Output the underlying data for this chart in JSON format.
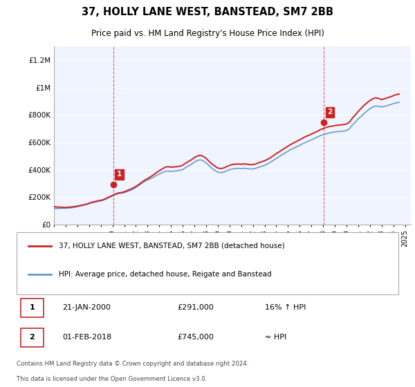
{
  "title": "37, HOLLY LANE WEST, BANSTEAD, SM7 2BB",
  "subtitle": "Price paid vs. HM Land Registry's House Price Index (HPI)",
  "ylabel_ticks": [
    "£0",
    "£200K",
    "£400K",
    "£600K",
    "£800K",
    "£1M",
    "£1.2M"
  ],
  "ytick_values": [
    0,
    200000,
    400000,
    600000,
    800000,
    1000000,
    1200000
  ],
  "ylim": [
    0,
    1300000
  ],
  "xlim_start": 1995.0,
  "xlim_end": 2025.5,
  "bg_color": "#f0f4ff",
  "plot_bg": "#f0f4ff",
  "grid_color": "#ffffff",
  "hpi_color": "#6699cc",
  "price_color": "#cc2222",
  "sale1_date": 2000.06,
  "sale1_price": 291000,
  "sale1_label": "1",
  "sale2_date": 2018.08,
  "sale2_price": 745000,
  "sale2_label": "2",
  "legend_line1": "37, HOLLY LANE WEST, BANSTEAD, SM7 2BB (detached house)",
  "legend_line2": "HPI: Average price, detached house, Reigate and Banstead",
  "table_row1_label": "1",
  "table_row1_date": "21-JAN-2000",
  "table_row1_price": "£291,000",
  "table_row1_hpi": "16% ↑ HPI",
  "table_row2_label": "2",
  "table_row2_date": "01-FEB-2018",
  "table_row2_price": "£745,000",
  "table_row2_hpi": "≈ HPI",
  "footer1": "Contains HM Land Registry data © Crown copyright and database right 2024.",
  "footer2": "This data is licensed under the Open Government Licence v3.0.",
  "hpi_data_x": [
    1995.0,
    1995.25,
    1995.5,
    1995.75,
    1996.0,
    1996.25,
    1996.5,
    1996.75,
    1997.0,
    1997.25,
    1997.5,
    1997.75,
    1998.0,
    1998.25,
    1998.5,
    1998.75,
    1999.0,
    1999.25,
    1999.5,
    1999.75,
    2000.0,
    2000.25,
    2000.5,
    2000.75,
    2001.0,
    2001.25,
    2001.5,
    2001.75,
    2002.0,
    2002.25,
    2002.5,
    2002.75,
    2003.0,
    2003.25,
    2003.5,
    2003.75,
    2004.0,
    2004.25,
    2004.5,
    2004.75,
    2005.0,
    2005.25,
    2005.5,
    2005.75,
    2006.0,
    2006.25,
    2006.5,
    2006.75,
    2007.0,
    2007.25,
    2007.5,
    2007.75,
    2008.0,
    2008.25,
    2008.5,
    2008.75,
    2009.0,
    2009.25,
    2009.5,
    2009.75,
    2010.0,
    2010.25,
    2010.5,
    2010.75,
    2011.0,
    2011.25,
    2011.5,
    2011.75,
    2012.0,
    2012.25,
    2012.5,
    2012.75,
    2013.0,
    2013.25,
    2013.5,
    2013.75,
    2014.0,
    2014.25,
    2014.5,
    2014.75,
    2015.0,
    2015.25,
    2015.5,
    2015.75,
    2016.0,
    2016.25,
    2016.5,
    2016.75,
    2017.0,
    2017.25,
    2017.5,
    2017.75,
    2018.0,
    2018.25,
    2018.5,
    2018.75,
    2019.0,
    2019.25,
    2019.5,
    2019.75,
    2020.0,
    2020.25,
    2020.5,
    2020.75,
    2021.0,
    2021.25,
    2021.5,
    2021.75,
    2022.0,
    2022.25,
    2022.5,
    2022.75,
    2023.0,
    2023.25,
    2023.5,
    2023.75,
    2024.0,
    2024.25,
    2024.5
  ],
  "hpi_data_y": [
    118000,
    116000,
    117000,
    118000,
    119000,
    120000,
    122000,
    125000,
    130000,
    135000,
    140000,
    145000,
    152000,
    158000,
    163000,
    168000,
    172000,
    178000,
    188000,
    198000,
    208000,
    218000,
    225000,
    228000,
    232000,
    240000,
    248000,
    258000,
    270000,
    285000,
    300000,
    315000,
    325000,
    335000,
    345000,
    358000,
    368000,
    378000,
    388000,
    390000,
    388000,
    390000,
    392000,
    395000,
    400000,
    415000,
    428000,
    440000,
    455000,
    468000,
    472000,
    465000,
    450000,
    430000,
    410000,
    395000,
    382000,
    378000,
    382000,
    392000,
    400000,
    405000,
    408000,
    410000,
    408000,
    410000,
    408000,
    405000,
    405000,
    410000,
    418000,
    425000,
    432000,
    442000,
    455000,
    468000,
    482000,
    495000,
    510000,
    522000,
    535000,
    548000,
    558000,
    568000,
    578000,
    590000,
    600000,
    608000,
    618000,
    628000,
    638000,
    648000,
    655000,
    662000,
    668000,
    672000,
    675000,
    678000,
    680000,
    682000,
    685000,
    700000,
    725000,
    748000,
    770000,
    790000,
    810000,
    828000,
    845000,
    858000,
    865000,
    862000,
    858000,
    862000,
    868000,
    875000,
    882000,
    888000,
    892000
  ],
  "price_data_x": [
    1995.0,
    1995.25,
    1995.5,
    1995.75,
    1996.0,
    1996.25,
    1996.5,
    1996.75,
    1997.0,
    1997.25,
    1997.5,
    1997.75,
    1998.0,
    1998.25,
    1998.5,
    1998.75,
    1999.0,
    1999.25,
    1999.5,
    1999.75,
    2000.0,
    2000.25,
    2000.5,
    2000.75,
    2001.0,
    2001.25,
    2001.5,
    2001.75,
    2002.0,
    2002.25,
    2002.5,
    2002.75,
    2003.0,
    2003.25,
    2003.5,
    2003.75,
    2004.0,
    2004.25,
    2004.5,
    2004.75,
    2005.0,
    2005.25,
    2005.5,
    2005.75,
    2006.0,
    2006.25,
    2006.5,
    2006.75,
    2007.0,
    2007.25,
    2007.5,
    2007.75,
    2008.0,
    2008.25,
    2008.5,
    2008.75,
    2009.0,
    2009.25,
    2009.5,
    2009.75,
    2010.0,
    2010.25,
    2010.5,
    2010.75,
    2011.0,
    2011.25,
    2011.5,
    2011.75,
    2012.0,
    2012.25,
    2012.5,
    2012.75,
    2013.0,
    2013.25,
    2013.5,
    2013.75,
    2014.0,
    2014.25,
    2014.5,
    2014.75,
    2015.0,
    2015.25,
    2015.5,
    2015.75,
    2016.0,
    2016.25,
    2016.5,
    2016.75,
    2017.0,
    2017.25,
    2017.5,
    2017.75,
    2018.0,
    2018.25,
    2018.5,
    2018.75,
    2019.0,
    2019.25,
    2019.5,
    2019.75,
    2020.0,
    2020.25,
    2020.5,
    2020.75,
    2021.0,
    2021.25,
    2021.5,
    2021.75,
    2022.0,
    2022.25,
    2022.5,
    2022.75,
    2023.0,
    2023.25,
    2023.5,
    2023.75,
    2024.0,
    2024.25,
    2024.5
  ],
  "price_data_y": [
    130000,
    128000,
    126000,
    125000,
    124000,
    126000,
    128000,
    130000,
    134000,
    138000,
    143000,
    148000,
    155000,
    162000,
    167000,
    172000,
    176000,
    182000,
    192000,
    202000,
    212000,
    222000,
    230000,
    233000,
    238000,
    248000,
    256000,
    266000,
    278000,
    292000,
    308000,
    323000,
    335000,
    348000,
    362000,
    378000,
    392000,
    405000,
    418000,
    422000,
    418000,
    420000,
    422000,
    425000,
    432000,
    448000,
    460000,
    472000,
    488000,
    500000,
    505000,
    498000,
    483000,
    462000,
    442000,
    426000,
    412000,
    408000,
    412000,
    422000,
    432000,
    438000,
    440000,
    442000,
    440000,
    442000,
    440000,
    437000,
    437000,
    442000,
    450000,
    458000,
    465000,
    475000,
    488000,
    502000,
    518000,
    530000,
    545000,
    558000,
    572000,
    585000,
    596000,
    608000,
    618000,
    630000,
    642000,
    650000,
    660000,
    670000,
    680000,
    692000,
    700000,
    708000,
    714000,
    718000,
    722000,
    725000,
    727000,
    730000,
    733000,
    748000,
    775000,
    800000,
    825000,
    848000,
    870000,
    888000,
    905000,
    918000,
    925000,
    920000,
    912000,
    918000,
    925000,
    932000,
    940000,
    948000,
    952000
  ]
}
